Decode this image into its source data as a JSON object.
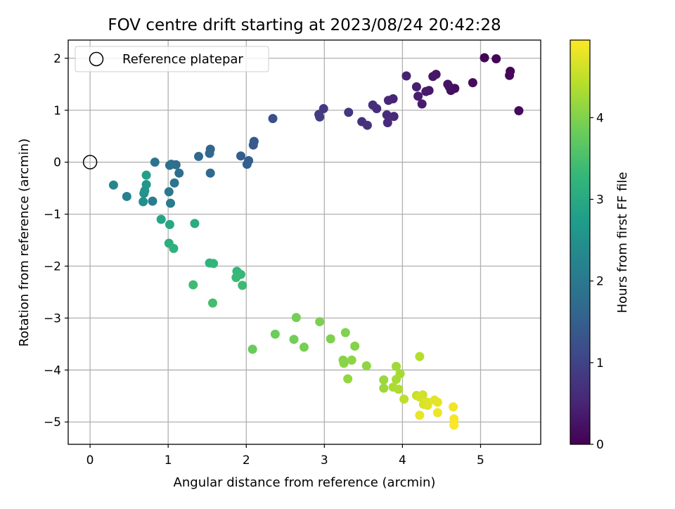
{
  "chart_data": {
    "type": "scatter",
    "title": "FOV centre drift starting at 2023/08/24 20:42:28",
    "xlabel": "Angular distance from reference (arcmin)",
    "ylabel": "Rotation from reference (arcmin)",
    "xlim": [
      -0.28,
      5.77
    ],
    "ylim": [
      -5.43,
      2.35
    ],
    "x_ticks": [
      "0",
      "1",
      "2",
      "3",
      "4",
      "5"
    ],
    "y_ticks": [
      "−5",
      "−4",
      "−3",
      "−2",
      "−1",
      "0",
      "1",
      "2"
    ],
    "grid": true,
    "legend": {
      "placement": "top-left",
      "entries": [
        "Reference platepar"
      ]
    },
    "reference_point": {
      "x": 0,
      "y": 0
    },
    "colorbar": {
      "label": "Hours from first FF file",
      "range": [
        0,
        4.95
      ],
      "ticks": [
        "0",
        "1",
        "2",
        "3",
        "4"
      ],
      "colormap": "viridis"
    },
    "points": [
      {
        "x": 5.05,
        "y": 2.01,
        "t": 0.03
      },
      {
        "x": 5.2,
        "y": 1.99,
        "t": 0.05
      },
      {
        "x": 5.38,
        "y": 1.75,
        "t": 0.08
      },
      {
        "x": 5.37,
        "y": 1.67,
        "t": 0.1
      },
      {
        "x": 5.49,
        "y": 0.99,
        "t": 0.12
      },
      {
        "x": 4.9,
        "y": 1.53,
        "t": 0.15
      },
      {
        "x": 4.67,
        "y": 1.42,
        "t": 0.18
      },
      {
        "x": 4.62,
        "y": 1.38,
        "t": 0.2
      },
      {
        "x": 4.6,
        "y": 1.45,
        "t": 0.22
      },
      {
        "x": 4.58,
        "y": 1.5,
        "t": 0.25
      },
      {
        "x": 4.43,
        "y": 1.69,
        "t": 0.28
      },
      {
        "x": 4.39,
        "y": 1.65,
        "t": 0.3
      },
      {
        "x": 4.34,
        "y": 1.38,
        "t": 0.32
      },
      {
        "x": 4.3,
        "y": 1.36,
        "t": 0.35
      },
      {
        "x": 4.25,
        "y": 1.12,
        "t": 0.38
      },
      {
        "x": 4.2,
        "y": 1.27,
        "t": 0.4
      },
      {
        "x": 4.18,
        "y": 1.45,
        "t": 0.43
      },
      {
        "x": 4.05,
        "y": 1.66,
        "t": 0.45
      },
      {
        "x": 3.88,
        "y": 1.22,
        "t": 0.5
      },
      {
        "x": 3.82,
        "y": 1.19,
        "t": 0.53
      },
      {
        "x": 3.89,
        "y": 0.88,
        "t": 0.56
      },
      {
        "x": 3.8,
        "y": 0.91,
        "t": 0.58
      },
      {
        "x": 3.81,
        "y": 0.76,
        "t": 0.6
      },
      {
        "x": 3.67,
        "y": 1.03,
        "t": 0.63
      },
      {
        "x": 3.62,
        "y": 1.1,
        "t": 0.66
      },
      {
        "x": 3.48,
        "y": 0.78,
        "t": 0.7
      },
      {
        "x": 3.55,
        "y": 0.71,
        "t": 0.73
      },
      {
        "x": 3.31,
        "y": 0.96,
        "t": 0.78
      },
      {
        "x": 2.99,
        "y": 1.03,
        "t": 0.85
      },
      {
        "x": 2.93,
        "y": 0.92,
        "t": 0.88
      },
      {
        "x": 2.94,
        "y": 0.87,
        "t": 0.9
      },
      {
        "x": 2.34,
        "y": 0.84,
        "t": 1.2
      },
      {
        "x": 2.1,
        "y": 0.4,
        "t": 1.35
      },
      {
        "x": 2.09,
        "y": 0.33,
        "t": 1.38
      },
      {
        "x": 1.93,
        "y": 0.12,
        "t": 1.45
      },
      {
        "x": 2.03,
        "y": 0.03,
        "t": 1.48
      },
      {
        "x": 2.01,
        "y": -0.04,
        "t": 1.5
      },
      {
        "x": 1.54,
        "y": 0.25,
        "t": 1.62
      },
      {
        "x": 1.53,
        "y": 0.17,
        "t": 1.65
      },
      {
        "x": 1.39,
        "y": 0.11,
        "t": 1.68
      },
      {
        "x": 1.54,
        "y": -0.21,
        "t": 1.7
      },
      {
        "x": 1.14,
        "y": -0.21,
        "t": 1.78
      },
      {
        "x": 1.1,
        "y": -0.05,
        "t": 1.8
      },
      {
        "x": 1.04,
        "y": -0.04,
        "t": 1.82
      },
      {
        "x": 1.02,
        "y": -0.06,
        "t": 1.84
      },
      {
        "x": 0.83,
        "y": 0.0,
        "t": 1.9
      },
      {
        "x": 1.08,
        "y": -0.4,
        "t": 1.95
      },
      {
        "x": 1.01,
        "y": -0.57,
        "t": 2.0
      },
      {
        "x": 1.03,
        "y": -0.79,
        "t": 2.05
      },
      {
        "x": 0.8,
        "y": -0.75,
        "t": 2.1
      },
      {
        "x": 0.47,
        "y": -0.66,
        "t": 2.2
      },
      {
        "x": 0.3,
        "y": -0.44,
        "t": 2.3
      },
      {
        "x": 0.68,
        "y": -0.76,
        "t": 2.45
      },
      {
        "x": 0.69,
        "y": -0.6,
        "t": 2.5
      },
      {
        "x": 0.7,
        "y": -0.55,
        "t": 2.55
      },
      {
        "x": 0.72,
        "y": -0.43,
        "t": 2.6
      },
      {
        "x": 0.72,
        "y": -0.25,
        "t": 2.8
      },
      {
        "x": 0.91,
        "y": -1.1,
        "t": 2.9
      },
      {
        "x": 1.02,
        "y": -1.2,
        "t": 2.95
      },
      {
        "x": 1.34,
        "y": -1.18,
        "t": 3.05
      },
      {
        "x": 1.01,
        "y": -1.56,
        "t": 3.1
      },
      {
        "x": 1.07,
        "y": -1.66,
        "t": 3.15
      },
      {
        "x": 1.53,
        "y": -1.94,
        "t": 3.2
      },
      {
        "x": 1.58,
        "y": -1.95,
        "t": 3.25
      },
      {
        "x": 1.88,
        "y": -2.1,
        "t": 3.3
      },
      {
        "x": 1.93,
        "y": -2.16,
        "t": 3.33
      },
      {
        "x": 1.87,
        "y": -2.22,
        "t": 3.35
      },
      {
        "x": 1.95,
        "y": -2.37,
        "t": 3.38
      },
      {
        "x": 1.32,
        "y": -2.36,
        "t": 3.4
      },
      {
        "x": 1.57,
        "y": -2.71,
        "t": 3.45
      },
      {
        "x": 2.08,
        "y": -3.6,
        "t": 3.8
      },
      {
        "x": 2.37,
        "y": -3.31,
        "t": 3.85
      },
      {
        "x": 2.61,
        "y": -3.41,
        "t": 3.88
      },
      {
        "x": 2.64,
        "y": -2.99,
        "t": 3.9
      },
      {
        "x": 2.74,
        "y": -3.56,
        "t": 3.92
      },
      {
        "x": 2.94,
        "y": -3.07,
        "t": 3.95
      },
      {
        "x": 3.08,
        "y": -3.4,
        "t": 3.98
      },
      {
        "x": 3.27,
        "y": -3.28,
        "t": 4.0
      },
      {
        "x": 3.39,
        "y": -3.54,
        "t": 4.03
      },
      {
        "x": 3.24,
        "y": -3.81,
        "t": 4.05
      },
      {
        "x": 3.25,
        "y": -3.87,
        "t": 4.07
      },
      {
        "x": 3.35,
        "y": -3.81,
        "t": 4.1
      },
      {
        "x": 3.54,
        "y": -3.92,
        "t": 4.12
      },
      {
        "x": 3.3,
        "y": -4.17,
        "t": 4.15
      },
      {
        "x": 3.76,
        "y": -4.19,
        "t": 4.2
      },
      {
        "x": 3.76,
        "y": -4.35,
        "t": 4.22
      },
      {
        "x": 3.92,
        "y": -3.93,
        "t": 4.25
      },
      {
        "x": 3.97,
        "y": -4.07,
        "t": 4.28
      },
      {
        "x": 3.92,
        "y": -4.18,
        "t": 4.3
      },
      {
        "x": 3.88,
        "y": -4.33,
        "t": 4.33
      },
      {
        "x": 3.95,
        "y": -4.37,
        "t": 4.35
      },
      {
        "x": 4.22,
        "y": -3.74,
        "t": 4.4
      },
      {
        "x": 4.02,
        "y": -4.56,
        "t": 4.45
      },
      {
        "x": 4.18,
        "y": -4.49,
        "t": 4.55
      },
      {
        "x": 4.26,
        "y": -4.48,
        "t": 4.6
      },
      {
        "x": 4.22,
        "y": -4.52,
        "t": 4.63
      },
      {
        "x": 4.27,
        "y": -4.66,
        "t": 4.66
      },
      {
        "x": 4.32,
        "y": -4.62,
        "t": 4.7
      },
      {
        "x": 4.32,
        "y": -4.68,
        "t": 4.72
      },
      {
        "x": 4.41,
        "y": -4.58,
        "t": 4.75
      },
      {
        "x": 4.45,
        "y": -4.62,
        "t": 4.78
      },
      {
        "x": 4.22,
        "y": -4.87,
        "t": 4.8
      },
      {
        "x": 4.45,
        "y": -4.82,
        "t": 4.83
      },
      {
        "x": 4.65,
        "y": -4.71,
        "t": 4.86
      },
      {
        "x": 4.66,
        "y": -4.94,
        "t": 4.9
      },
      {
        "x": 4.66,
        "y": -5.06,
        "t": 4.93
      }
    ]
  }
}
